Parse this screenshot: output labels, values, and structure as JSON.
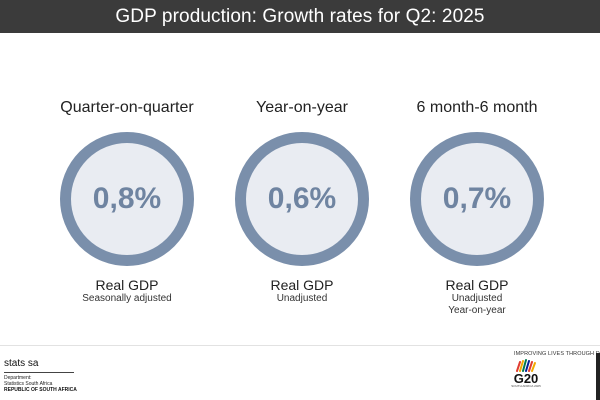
{
  "header": {
    "title": "GDP production: Growth rates for Q2: 2025"
  },
  "metrics": [
    {
      "heading": "Quarter-on-quarter",
      "value": "0,8%",
      "label": "Real GDP",
      "sub1": "Seasonally adjusted",
      "sub2": ""
    },
    {
      "heading": "Year-on-year",
      "value": "0,6%",
      "label": "Real GDP",
      "sub1": "Unadjusted",
      "sub2": ""
    },
    {
      "heading": "6 month-6 month",
      "value": "0,7%",
      "label": "Real GDP",
      "sub1": "Unadjusted",
      "sub2": "Year-on-year"
    }
  ],
  "footer": {
    "brand_name": "stats sa",
    "brand_line1": "Department:",
    "brand_line2": "Statistics South Africa",
    "brand_line3": "REPUBLIC OF SOUTH AFRICA",
    "tagline": "IMPROVING LIVES THROUGH DATA ECOSYSTEMS",
    "g20_label": "G20",
    "g20_sub": "SOUTH AFRICA 2025",
    "g20_icon": "g20-emblem-icon"
  },
  "colors": {
    "header_bg": "#3b3b3b",
    "ring": "#7a8fab",
    "ring_fill": "#e9ecf2",
    "value_text": "#6f84a1"
  }
}
